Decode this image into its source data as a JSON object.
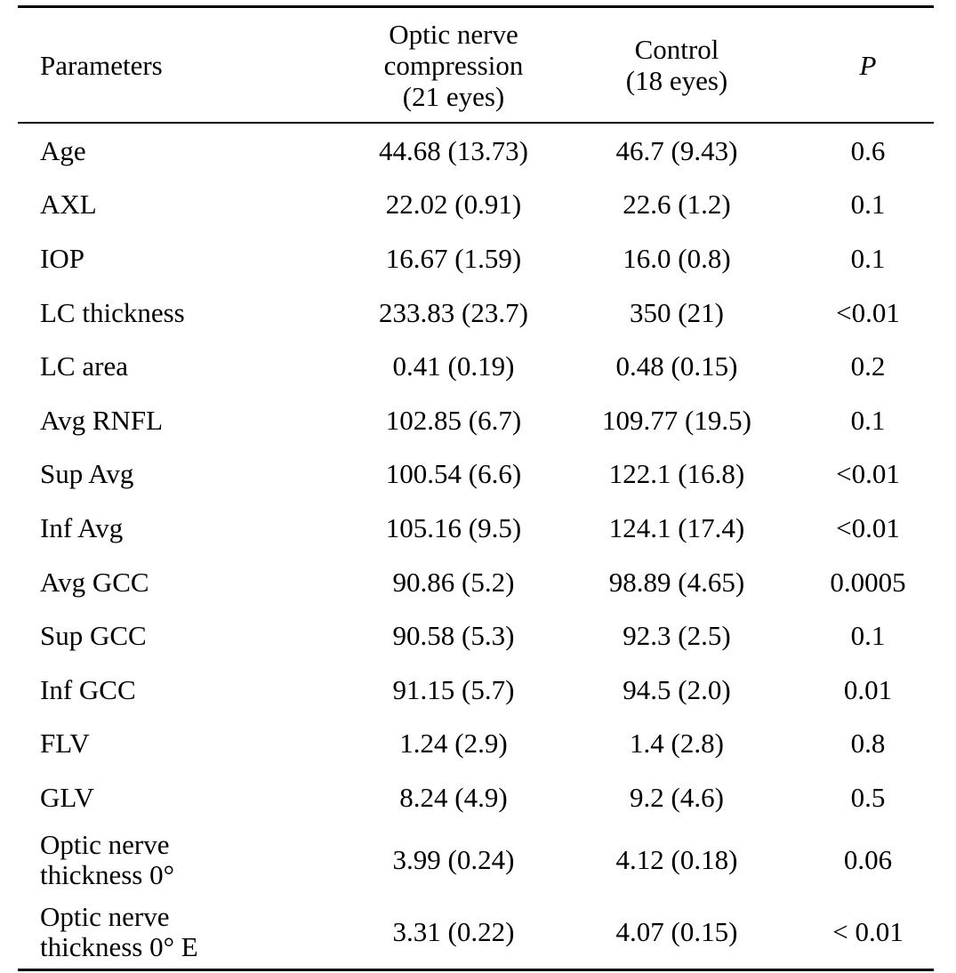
{
  "table": {
    "headers": {
      "parameters": "Parameters",
      "onc_line1": "Optic nerve",
      "onc_line2": "compression",
      "onc_line3": "(21 eyes)",
      "control_line1": "Control",
      "control_line2": "(18 eyes)",
      "p": "P"
    },
    "rows": [
      {
        "param": "Age",
        "onc": "44.68 (13.73)",
        "control": "46.7 (9.43)",
        "p": "0.6"
      },
      {
        "param": "AXL",
        "onc": "22.02 (0.91)",
        "control": "22.6 (1.2)",
        "p": "0.1"
      },
      {
        "param": "IOP",
        "onc": "16.67 (1.59)",
        "control": "16.0 (0.8)",
        "p": "0.1"
      },
      {
        "param": "LC thickness",
        "onc": "233.83 (23.7)",
        "control": "350 (21)",
        "p": "<0.01"
      },
      {
        "param": "LC area",
        "onc": "0.41 (0.19)",
        "control": "0.48 (0.15)",
        "p": "0.2"
      },
      {
        "param": "Avg RNFL",
        "onc": "102.85 (6.7)",
        "control": "109.77 (19.5)",
        "p": "0.1"
      },
      {
        "param": "Sup Avg",
        "onc": "100.54 (6.6)",
        "control": "122.1 (16.8)",
        "p": "<0.01"
      },
      {
        "param": "Inf Avg",
        "onc": "105.16 (9.5)",
        "control": "124.1 (17.4)",
        "p": "<0.01"
      },
      {
        "param": "Avg GCC",
        "onc": "90.86 (5.2)",
        "control": "98.89 (4.65)",
        "p": "0.0005"
      },
      {
        "param": "Sup GCC",
        "onc": "90.58 (5.3)",
        "control": "92.3 (2.5)",
        "p": "0.1"
      },
      {
        "param": "Inf GCC",
        "onc": "91.15 (5.7)",
        "control": "94.5 (2.0)",
        "p": "0.01"
      },
      {
        "param": "FLV",
        "onc": "1.24 (2.9)",
        "control": "1.4 (2.8)",
        "p": "0.8"
      },
      {
        "param": "GLV",
        "onc": "8.24 (4.9)",
        "control": "9.2 (4.6)",
        "p": "0.5"
      },
      {
        "param_line1": "Optic nerve",
        "param_line2": "thickness 0°",
        "onc": "3.99 (0.24)",
        "control": "4.12 (0.18)",
        "p": "0.06"
      },
      {
        "param_line1": "Optic nerve",
        "param_line2": "thickness 0° E",
        "onc": "3.31 (0.22)",
        "control": "4.07 (0.15)",
        "p": "< 0.01"
      }
    ]
  }
}
